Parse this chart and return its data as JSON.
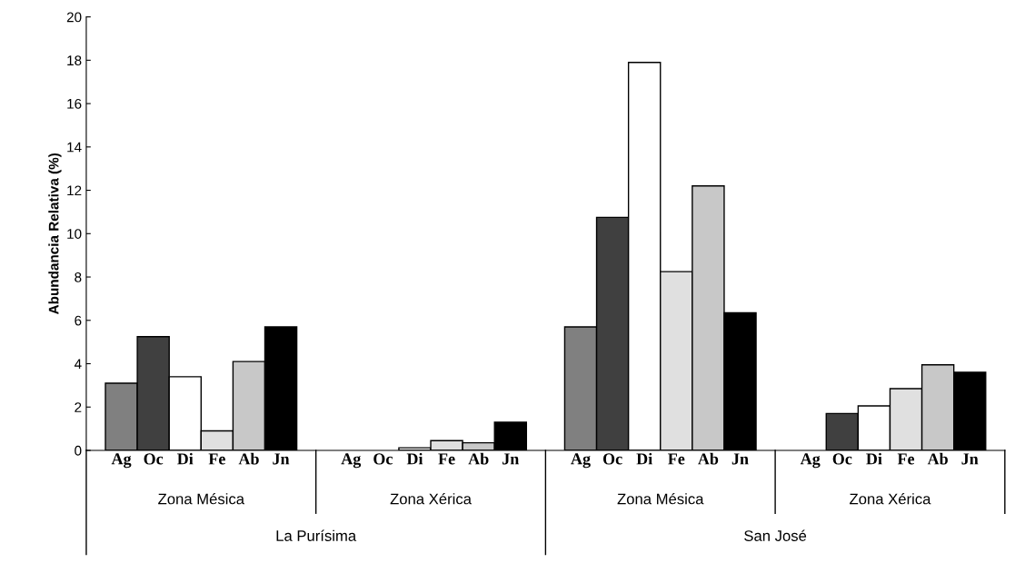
{
  "chart_data": {
    "type": "bar",
    "ylabel": "Abundancia Relativa (%)",
    "categories": [
      "Ag",
      "Oc",
      "Di",
      "Fe",
      "Ab",
      "Jn",
      "Ag",
      "Oc",
      "Di",
      "Fe",
      "Ab",
      "Jn",
      "Ag",
      "Oc",
      "Di",
      "Fe",
      "Ab",
      "Jn",
      "Ag",
      "Oc",
      "Di",
      "Fe",
      "Ab",
      "Jn"
    ],
    "values": [
      3.1,
      5.25,
      3.4,
      0.9,
      4.1,
      5.7,
      null,
      null,
      0.12,
      0.45,
      0.35,
      1.3,
      5.7,
      10.75,
      17.9,
      8.25,
      12.2,
      6.35,
      null,
      1.7,
      2.05,
      2.85,
      3.95,
      3.6
    ],
    "colors": [
      "#808080",
      "#404040",
      "#ffffff",
      "#e0e0e0",
      "#c8c8c8",
      "#000000",
      "#808080",
      "#404040",
      "#ffffff",
      "#e0e0e0",
      "#c8c8c8",
      "#000000",
      "#808080",
      "#404040",
      "#ffffff",
      "#e0e0e0",
      "#c8c8c8",
      "#000000",
      "#808080",
      "#404040",
      "#ffffff",
      "#e0e0e0",
      "#c8c8c8",
      "#000000"
    ],
    "annotations": [
      "Zona Mésica",
      "Zona Xérica",
      "Zona Mésica",
      "Zona Xérica",
      "La Purísima",
      "San José"
    ],
    "ylim": [
      0,
      20
    ],
    "yticks": [
      0,
      2,
      4,
      6,
      8,
      10,
      12,
      14,
      16,
      18,
      20
    ],
    "grid": false,
    "legend": false
  }
}
